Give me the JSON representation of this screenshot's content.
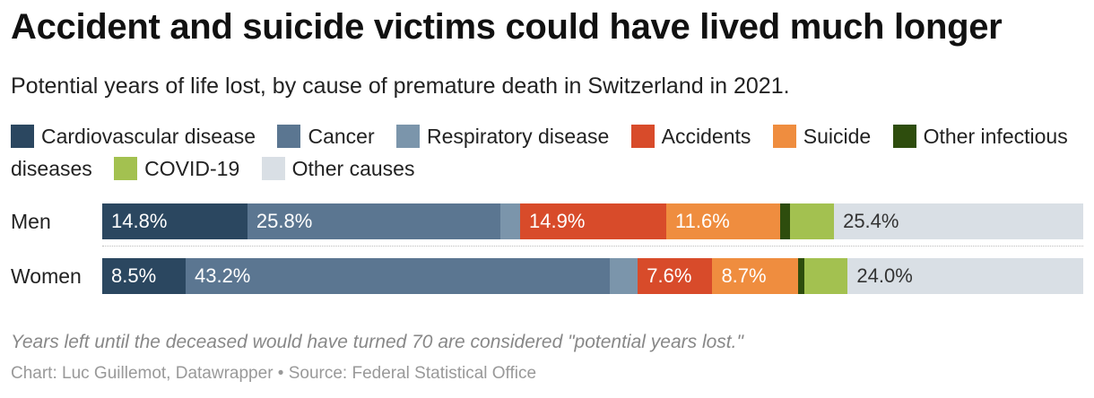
{
  "title": "Accident and suicide victims could have lived much longer",
  "subtitle": "Potential years of life lost, by cause of premature death in Switzerland in 2021.",
  "notes": "Years left until the deceased would have turned 70 are considered \"potential years lost.\"",
  "credit": "Chart: Luc Guillemot, Datawrapper • Source: Federal Statistical Office",
  "chart_data": {
    "type": "bar",
    "stacked": true,
    "orientation": "horizontal",
    "normalized": true,
    "categories": [
      "Men",
      "Women"
    ],
    "series": [
      {
        "name": "Cardiovascular disease",
        "color": "#2b4760",
        "values": [
          14.8,
          8.5
        ],
        "labels": [
          "14.8%",
          "8.5%"
        ],
        "label_color": "#ffffff"
      },
      {
        "name": "Cancer",
        "color": "#5b7691",
        "values": [
          25.8,
          43.2
        ],
        "labels": [
          "25.8%",
          "43.2%"
        ],
        "label_color": "#ffffff"
      },
      {
        "name": "Respiratory disease",
        "color": "#7b95ab",
        "values": [
          2.0,
          2.9
        ],
        "labels": [
          "",
          ""
        ],
        "label_color": "#ffffff"
      },
      {
        "name": "Accidents",
        "color": "#d84b2a",
        "values": [
          14.9,
          7.6
        ],
        "labels": [
          "14.9%",
          "7.6%"
        ],
        "label_color": "#ffffff"
      },
      {
        "name": "Suicide",
        "color": "#ef8d3f",
        "values": [
          11.6,
          8.7
        ],
        "labels": [
          "11.6%",
          "8.7%"
        ],
        "label_color": "#ffffff"
      },
      {
        "name": "Other infectious diseases",
        "color": "#2e4d0d",
        "values": [
          1.0,
          0.7
        ],
        "labels": [
          "",
          ""
        ],
        "label_color": "#ffffff"
      },
      {
        "name": "COVID-19",
        "color": "#a3c150",
        "values": [
          4.5,
          4.4
        ],
        "labels": [
          "",
          ""
        ],
        "label_color": "#ffffff"
      },
      {
        "name": "Other causes",
        "color": "#d9dfe5",
        "values": [
          25.4,
          24.0
        ],
        "labels": [
          "25.4%",
          "24.0%"
        ],
        "label_color": "#333333"
      }
    ],
    "xlim": [
      0,
      100
    ],
    "legend": "top"
  }
}
